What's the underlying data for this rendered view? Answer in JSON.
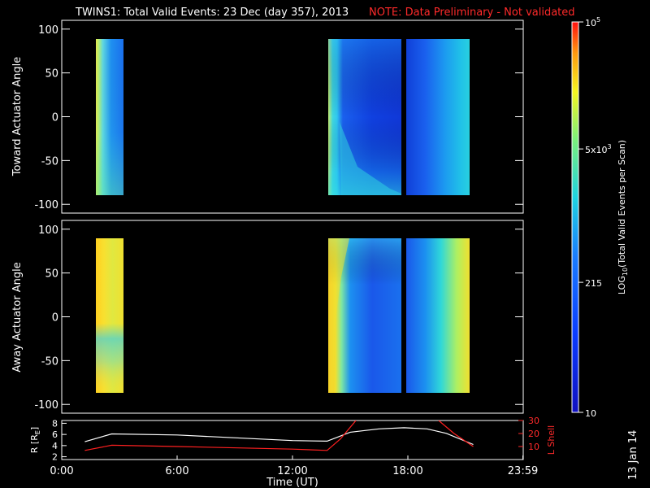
{
  "title": "TWINS1: Total Valid Events: 23 Dec (day 357), 2013",
  "note": "NOTE: Data Preliminary - Not validated",
  "stamp": "13 Jan 14",
  "colors": {
    "background": "#000000",
    "frame": "#ffffff",
    "note": "#ff2a2a",
    "ephem_r": "#ffffff",
    "ephem_l": "#ff2020"
  },
  "colorbar": {
    "label": "LOG10(Total Valid Events per Scan)",
    "label_main": "LOG",
    "label_sub": "10",
    "label_rest": "(Total Valid Events per Scan)",
    "range": [
      10,
      100000
    ],
    "scale": "log",
    "ticks": [
      {
        "value": 100000,
        "label": "10",
        "sup": "5"
      },
      {
        "value": 5000,
        "label": "5x10",
        "sup": "3"
      },
      {
        "value": 215,
        "label": "215",
        "sup": ""
      },
      {
        "value": 10,
        "label": "10",
        "sup": ""
      }
    ]
  },
  "chart_data": [
    {
      "type": "heatmap",
      "name_panel": "toward",
      "ylabel": "Toward Actuator Angle",
      "xlim": [
        "0:00",
        "24:00"
      ],
      "ylim": [
        -110,
        110
      ],
      "yticks": [
        100,
        50,
        0,
        -50,
        -100
      ],
      "ytick_labels": [
        "100",
        "50",
        "0",
        "-50",
        "-100"
      ],
      "coverage": [
        {
          "start": "1:12",
          "end": "2:42",
          "angle_range": [
            -88,
            90
          ],
          "level": "low-mid"
        },
        {
          "start": "13:48",
          "end": "17:48",
          "angle_range": [
            -88,
            90
          ],
          "level": "low"
        },
        {
          "start": "18:00",
          "end": "21:24",
          "angle_range": [
            -88,
            90
          ],
          "level": "low-rising"
        }
      ]
    },
    {
      "type": "heatmap",
      "name_panel": "away",
      "ylabel": "Away Actuator Angle",
      "xlim": [
        "0:00",
        "24:00"
      ],
      "ylim": [
        -110,
        110
      ],
      "yticks": [
        100,
        50,
        0,
        -50,
        -100
      ],
      "ytick_labels": [
        "100",
        "50",
        "0",
        "-50",
        "-100"
      ],
      "coverage": [
        {
          "start": "1:12",
          "end": "2:42",
          "angle_range": [
            -88,
            90
          ],
          "level": "high"
        },
        {
          "start": "13:48",
          "end": "17:48",
          "angle_range": [
            -88,
            90
          ],
          "level": "mid"
        },
        {
          "start": "18:00",
          "end": "21:24",
          "angle_range": [
            -88,
            90
          ],
          "level": "mid-rising"
        }
      ]
    },
    {
      "type": "line",
      "name_panel": "ephemeris",
      "ylabel_left": "R [RE]",
      "ylabel_left_main": "R [R",
      "ylabel_left_sub": "E",
      "ylabel_left_end": "]",
      "ylabel_right": "L Shell",
      "xlabel": "Time (UT)",
      "xticks": [
        "0:00",
        "6:00",
        "12:00",
        "18:00",
        "23:59"
      ],
      "xtick_hours": [
        0,
        6,
        12,
        18,
        23.98
      ],
      "left_ylim": [
        1.5,
        8.5
      ],
      "left_yticks": [
        2,
        4,
        6,
        8
      ],
      "left_ytick_labels": [
        "2",
        "4",
        "6",
        "8"
      ],
      "right_ylim": [
        0,
        30
      ],
      "right_yticks": [
        10,
        20,
        30
      ],
      "right_ytick_labels": [
        "10",
        "20",
        "30"
      ],
      "series": [
        {
          "axis": "left",
          "hours": [
            1.2,
            2.6,
            6,
            12,
            13.8,
            15,
            16.5,
            17.8,
            19,
            20,
            21.4
          ],
          "values": [
            4.7,
            6.1,
            5.9,
            4.9,
            4.8,
            6.4,
            7.0,
            7.2,
            7.0,
            6.2,
            4.2
          ]
        },
        {
          "axis": "right",
          "hours": [
            1.2,
            2.6,
            6,
            12,
            13.8,
            14.5,
            15.3
          ],
          "values": [
            7,
            11,
            10,
            8,
            7,
            16,
            30
          ]
        },
        {
          "axis": "right",
          "hours": [
            19.6,
            20.4,
            21.4
          ],
          "values": [
            30,
            20,
            10
          ]
        }
      ]
    }
  ]
}
